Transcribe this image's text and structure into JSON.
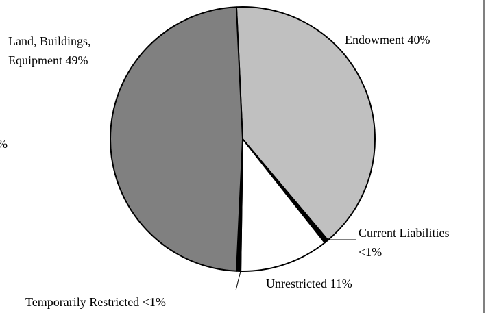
{
  "chart_data": {
    "type": "pie",
    "categories": [
      "Endowment",
      "Current Liabilities",
      "Unrestricted",
      "Temporarily Restricted",
      "Land, Buildings, Equipment"
    ],
    "values": [
      40,
      0.5,
      11,
      0.5,
      49
    ],
    "value_labels": [
      "40%",
      "<1%",
      "11%",
      "<1%",
      "49%"
    ],
    "colors": [
      "#c0c0c0",
      "#000000",
      "#ffffff",
      "#000000",
      "#808080"
    ],
    "annotations": [
      "%"
    ]
  }
}
